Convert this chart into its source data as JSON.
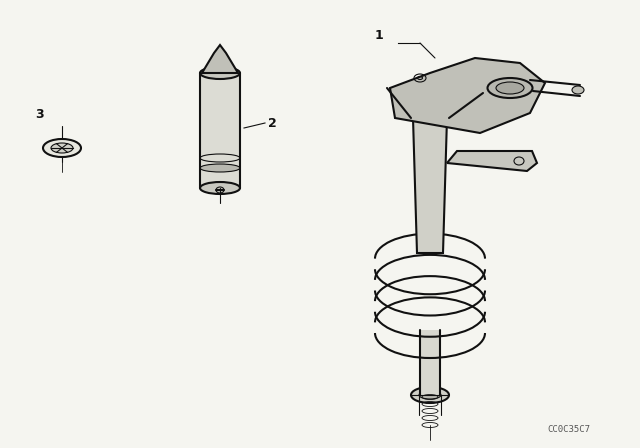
{
  "background_color": "#f5f5f0",
  "title": "",
  "watermark": "CC0C35C7",
  "parts": {
    "part1_label": "1",
    "part2_label": "2",
    "part3_label": "3"
  },
  "line_color": "#111111",
  "label_color": "#111111"
}
